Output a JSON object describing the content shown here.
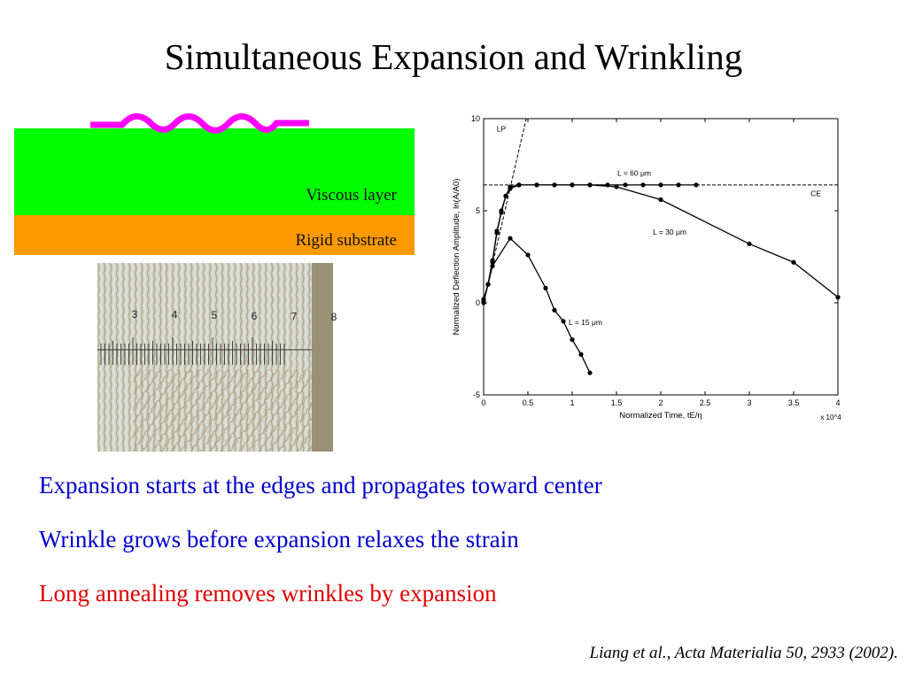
{
  "slide": {
    "title": "Simultaneous Expansion and Wrinkling",
    "schematic": {
      "viscous_label": "Viscous layer",
      "substrate_label": "Rigid substrate",
      "colors": {
        "viscous": "#00ff00",
        "substrate": "#ff9900",
        "film": "#ff00ff"
      }
    },
    "photo": {
      "ruler_numbers": [
        "3",
        "4",
        "5",
        "6",
        "7",
        "8"
      ]
    },
    "bullets": [
      {
        "text": "Expansion starts at the edges and propagates toward center",
        "color": "#0000cc"
      },
      {
        "text": "Wrinkle grows before expansion relaxes the strain",
        "color": "#0000cc"
      },
      {
        "text": "Long annealing removes wrinkles by expansion",
        "color": "#e00000"
      }
    ],
    "citation": "Liang et al., Acta Materialia 50, 2933 (2002)."
  },
  "chart_data": {
    "type": "line",
    "xlabel": "Normalized Time, tE/η",
    "ylabel": "Normalized Deflection Amplitude, ln(A/A0)",
    "x_multiplier": "x 10^4",
    "xlim": [
      0,
      4
    ],
    "ylim": [
      -5,
      10
    ],
    "xticks": [
      "0",
      "0.5",
      "1",
      "1.5",
      "2",
      "2.5",
      "3",
      "3.5",
      "4"
    ],
    "yticks": [
      "-5",
      "0",
      "5",
      "10"
    ],
    "annotations": [
      "LP",
      "CE",
      "L = 60 μm",
      "L = 30 μm",
      "L = 15 μm"
    ],
    "reference_lines": [
      {
        "name": "CE",
        "y": 6.4
      },
      {
        "name": "LP",
        "points": [
          [
            0,
            0
          ],
          [
            0.5,
            10.4
          ]
        ]
      }
    ],
    "series": [
      {
        "name": "L = 60 μm",
        "x": [
          0,
          0.05,
          0.1,
          0.15,
          0.2,
          0.25,
          0.3,
          0.4,
          0.6,
          0.8,
          1.0,
          1.2,
          1.4,
          1.6,
          1.8,
          2.0,
          2.2,
          2.4
        ],
        "y": [
          0.2,
          1.0,
          2.3,
          3.8,
          5.0,
          5.8,
          6.3,
          6.4,
          6.4,
          6.4,
          6.4,
          6.4,
          6.4,
          6.4,
          6.4,
          6.4,
          6.4,
          6.4
        ]
      },
      {
        "name": "L = 30 μm",
        "x": [
          0,
          0.05,
          0.1,
          0.15,
          0.2,
          0.25,
          0.3,
          0.4,
          0.6,
          0.8,
          1.0,
          1.2,
          1.5,
          2.0,
          3.0,
          3.5,
          4.0
        ],
        "y": [
          0.1,
          1.0,
          2.2,
          3.9,
          4.9,
          5.8,
          6.2,
          6.4,
          6.4,
          6.4,
          6.4,
          6.4,
          6.3,
          5.6,
          3.2,
          2.2,
          0.3
        ]
      },
      {
        "name": "L = 15 μm",
        "x": [
          0,
          0.05,
          0.1,
          0.3,
          0.5,
          0.7,
          0.8,
          0.9,
          1.0,
          1.1,
          1.2
        ],
        "y": [
          0.0,
          1.0,
          2.0,
          3.5,
          2.6,
          0.8,
          -0.4,
          -1.0,
          -2.0,
          -2.8,
          -3.8
        ]
      }
    ]
  }
}
